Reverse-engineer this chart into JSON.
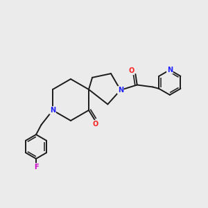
{
  "bg_color": "#ebebeb",
  "bond_color": "#1a1a1a",
  "atom_colors": {
    "N": "#2020ff",
    "O": "#ff2020",
    "F": "#cc00cc",
    "C": "#1a1a1a"
  },
  "bond_width": 1.4,
  "dbl_sep": 0.01
}
